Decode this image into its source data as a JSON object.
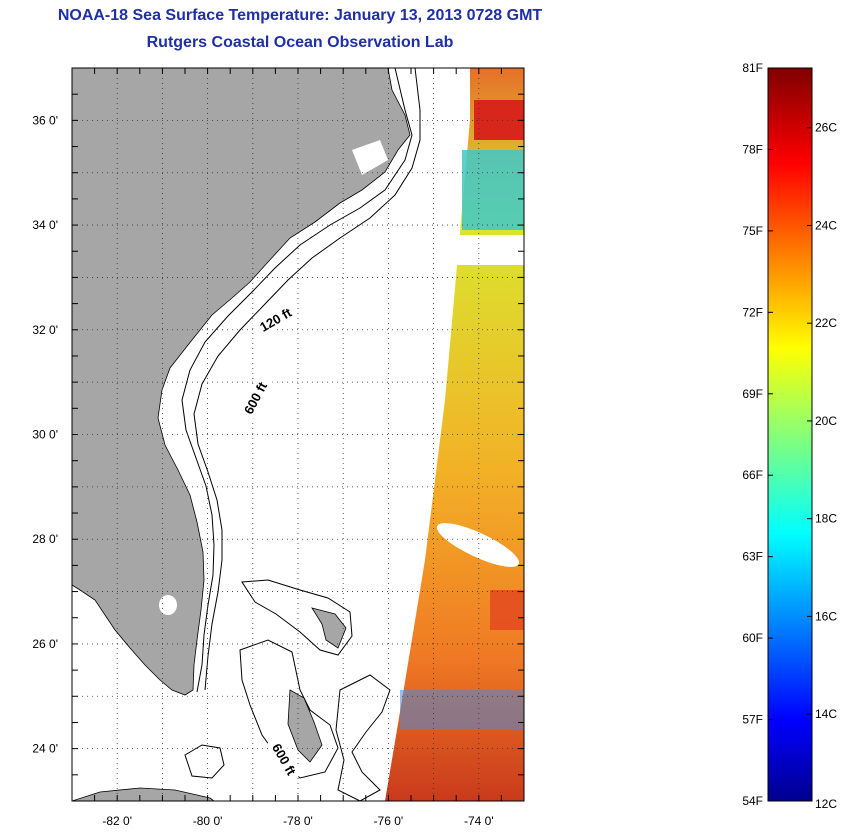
{
  "title": {
    "line1": "NOAA-18 Sea Surface Temperature:  January 13, 2013 0728 GMT",
    "line2": "Rutgers Coastal Ocean Observation Lab"
  },
  "map": {
    "lon_range": [
      -83,
      -73
    ],
    "lat_range": [
      23,
      37
    ],
    "lon_ticks": [
      {
        "value": -82,
        "label": "-82 0'"
      },
      {
        "value": -80,
        "label": "-80 0'"
      },
      {
        "value": -78,
        "label": "-78 0'"
      },
      {
        "value": -76,
        "label": "-76 0'"
      },
      {
        "value": -74,
        "label": "-74 0'"
      }
    ],
    "lat_ticks": [
      {
        "value": 24,
        "label": "24 0'"
      },
      {
        "value": 26,
        "label": "26 0'"
      },
      {
        "value": 28,
        "label": "28 0'"
      },
      {
        "value": 30,
        "label": "30 0'"
      },
      {
        "value": 32,
        "label": "32 0'"
      },
      {
        "value": 34,
        "label": "34 0'"
      },
      {
        "value": 36,
        "label": "36 0'"
      }
    ],
    "grid": "dotted",
    "contour_labels": [
      {
        "text": "120 ft",
        "lon": -78.5,
        "lat": 32.2
      },
      {
        "text": "600 ft",
        "lon": -78.95,
        "lat": 30.7
      },
      {
        "text": "600 ft",
        "lon": -78.3,
        "lat": 23.8
      }
    ],
    "colors": {
      "land": "#a6a6a6",
      "coastline": "#000000",
      "title": "#1f2fa8"
    }
  },
  "colorbar": {
    "range_f": [
      54,
      81
    ],
    "range_c": [
      12,
      27
    ],
    "f_labels": [
      "81F",
      "78F",
      "75F",
      "72F",
      "69F",
      "66F",
      "63F",
      "60F",
      "57F",
      "54F"
    ],
    "c_labels": [
      "26C",
      "24C",
      "22C",
      "20C",
      "18C",
      "16C",
      "14C",
      "12C"
    ],
    "colormap": "jet"
  }
}
